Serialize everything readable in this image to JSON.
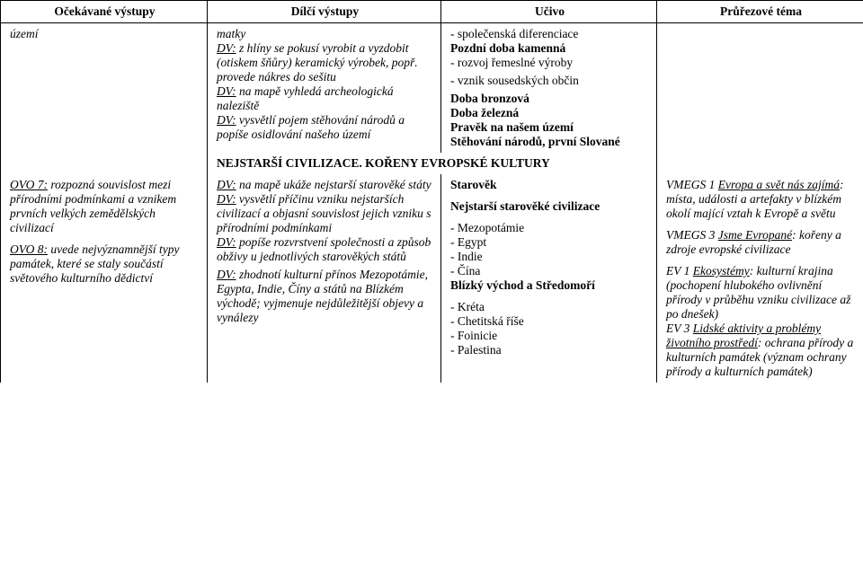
{
  "headers": {
    "c1": "Očekávané výstupy",
    "c2": "Dílčí výstupy",
    "c3": "Učivo",
    "c4": "Průřezové téma"
  },
  "row1": {
    "col1": {
      "line1": "území"
    },
    "col2": {
      "line1": "matky",
      "dv1_prefix": "DV:",
      "dv1_rest": " z hlíny se pokusí vyrobit a vyzdobit (otiskem šňůry) keramický výrobek, popř. provede nákres do sešitu",
      "dv2_prefix": "DV:",
      "dv2_rest": " na mapě vyhledá archeologická naleziště",
      "dv3_prefix": "DV:",
      "dv3_rest": " vysvětlí pojem stěhování národů a popíše osidlování našeho území"
    },
    "col3": {
      "l1": "- společenská diferenciace",
      "l2": "Pozdní doba kamenná",
      "l3": "- rozvoj řemeslné výroby",
      "l4": "- vznik sousedských občin",
      "l5": "Doba bronzová",
      "l6": "Doba železná",
      "l7": "Pravěk na našem území",
      "l8": "Stěhování národů, první Slované"
    }
  },
  "sectionHeading": "NEJSTARŠÍ CIVILIZACE. KOŘENY EVROPSKÉ KULTURY",
  "row2": {
    "col1": {
      "ovo7_prefix": "OVO 7:",
      "ovo7_rest": " rozpozná souvislost mezi přírodními podmínkami a vznikem prvních velkých zemědělských civilizací",
      "ovo8_prefix": "OVO 8:",
      "ovo8_rest": " uvede nejvýznamnější typy památek, které se staly součástí světového kulturního dědictví"
    },
    "col2": {
      "dv1_prefix": "DV:",
      "dv1_rest": " na mapě ukáže nejstarší starověké státy",
      "dv2_prefix": "DV:",
      "dv2_rest": " vysvětlí příčinu vzniku nejstarších civilizací a objasní souvislost jejich vzniku s přírodními podmínkami",
      "dv3_prefix": "DV:",
      "dv3_rest": " popíše rozvrstvení společnosti a způsob obživy u jednotlivých starověkých států",
      "dv4_prefix": "DV:",
      "dv4_rest": " zhodnotí kulturní přínos Mezopotámie, Egypta, Indie, Číny a států na Blízkém východě; vyjmenuje nejdůležitější objevy a vynálezy"
    },
    "col3": {
      "h1": "Starověk",
      "h2": "Nejstarší starověké civilizace",
      "l1": "- Mezopotámie",
      "l2": "- Egypt",
      "l3": "- Indie",
      "l4": "- Čína",
      "h3": "Blízký východ a Středomoří",
      "l5": "- Kréta",
      "l6": "- Chetitská říše",
      "l7": "- Foinicie",
      "l8": "- Palestina"
    },
    "col4": {
      "vm1_title": "VMEGS 1 ",
      "vm1_name": "Evropa a svět nás zajímá",
      "vm1_rest": ": místa, události a artefakty v blízkém okolí mající vztah k Evropě a světu",
      "vm3_title": "VMEGS 3 ",
      "vm3_name": "Jsme Evropané",
      "vm3_rest": ": kořeny a zdroje evropské civilizace",
      "ev1_title": "EV 1 ",
      "ev1_name": "Ekosystémy",
      "ev1_rest": ": kulturní krajina (pochopení hlubokého ovlivnění přírody v průběhu vzniku civilizace až po dnešek)",
      "ev3_title": "EV 3 ",
      "ev3_name": "Lidské aktivity a problémy životního prostředí",
      "ev3_rest": ": ochrana přírody a kulturních památek (význam ochrany přírody a kulturních památek)"
    }
  }
}
